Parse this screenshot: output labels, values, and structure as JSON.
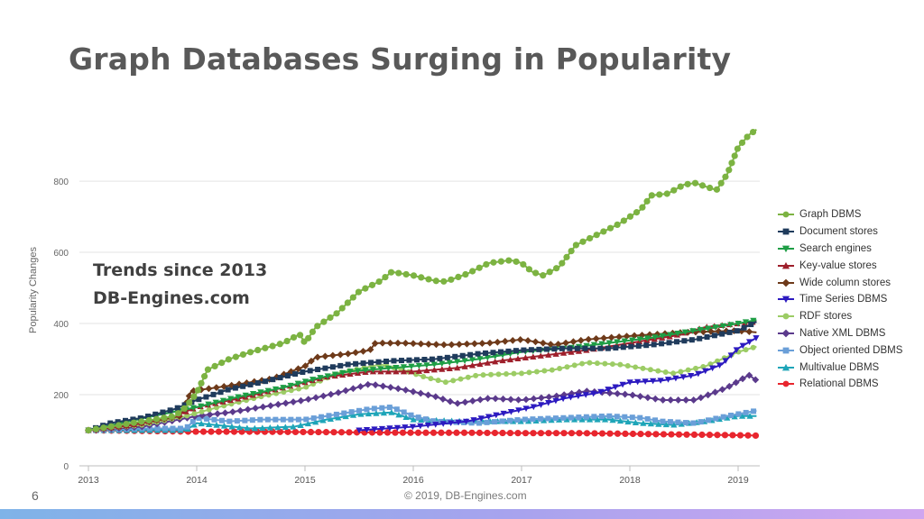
{
  "slide": {
    "title": "Graph Databases Surging in Popularity",
    "overlay_line1": "Trends since 2013",
    "overlay_line2": "DB-Engines.com",
    "slide_number": "6",
    "credit": "© 2019, DB-Engines.com"
  },
  "colors": {
    "accent_bar_start": "#7fb3e8",
    "accent_bar_end": "#cfa6f0"
  },
  "chart_data": {
    "type": "line",
    "title": "",
    "xlabel": "",
    "ylabel": "Popularity Changes",
    "xlim": [
      2013,
      2019.2
    ],
    "ylim": [
      0,
      980
    ],
    "x_ticks": [
      2013,
      2014,
      2015,
      2016,
      2017,
      2018,
      2019
    ],
    "y_ticks": [
      0,
      200,
      400,
      600,
      800
    ],
    "legend_position": "right",
    "series": [
      {
        "name": "Graph DBMS",
        "color": "#7cb342",
        "marker": "circle",
        "points": [
          [
            2013,
            100
          ],
          [
            2013.5,
            125
          ],
          [
            2013.8,
            140
          ],
          [
            2013.9,
            165
          ],
          [
            2014.0,
            205
          ],
          [
            2014.1,
            270
          ],
          [
            2014.3,
            300
          ],
          [
            2014.5,
            320
          ],
          [
            2014.8,
            345
          ],
          [
            2014.95,
            370
          ],
          [
            2015.0,
            345
          ],
          [
            2015.1,
            390
          ],
          [
            2015.3,
            430
          ],
          [
            2015.5,
            490
          ],
          [
            2015.7,
            520
          ],
          [
            2015.8,
            545
          ],
          [
            2016.0,
            535
          ],
          [
            2016.2,
            520
          ],
          [
            2016.3,
            518
          ],
          [
            2016.5,
            540
          ],
          [
            2016.7,
            570
          ],
          [
            2016.9,
            578
          ],
          [
            2017.0,
            570
          ],
          [
            2017.1,
            545
          ],
          [
            2017.2,
            535
          ],
          [
            2017.35,
            560
          ],
          [
            2017.5,
            620
          ],
          [
            2017.7,
            650
          ],
          [
            2017.9,
            680
          ],
          [
            2018.1,
            720
          ],
          [
            2018.2,
            760
          ],
          [
            2018.35,
            765
          ],
          [
            2018.5,
            790
          ],
          [
            2018.6,
            795
          ],
          [
            2018.7,
            785
          ],
          [
            2018.8,
            775
          ],
          [
            2018.9,
            820
          ],
          [
            2019.0,
            895
          ],
          [
            2019.1,
            930
          ],
          [
            2019.17,
            945
          ]
        ]
      },
      {
        "name": "Document stores",
        "color": "#1f3b5c",
        "marker": "square",
        "points": [
          [
            2013,
            100
          ],
          [
            2013.2,
            120
          ],
          [
            2013.5,
            135
          ],
          [
            2013.8,
            160
          ],
          [
            2014.0,
            185
          ],
          [
            2014.3,
            215
          ],
          [
            2014.6,
            235
          ],
          [
            2015.0,
            265
          ],
          [
            2015.4,
            285
          ],
          [
            2015.8,
            295
          ],
          [
            2016.2,
            300
          ],
          [
            2016.6,
            315
          ],
          [
            2017.0,
            325
          ],
          [
            2017.4,
            330
          ],
          [
            2017.8,
            330
          ],
          [
            2018.2,
            340
          ],
          [
            2018.6,
            355
          ],
          [
            2019.0,
            380
          ],
          [
            2019.17,
            405
          ]
        ]
      },
      {
        "name": "Search engines",
        "color": "#1e9e45",
        "marker": "triangle-down",
        "points": [
          [
            2013,
            100
          ],
          [
            2013.3,
            120
          ],
          [
            2013.6,
            140
          ],
          [
            2014.0,
            165
          ],
          [
            2014.4,
            195
          ],
          [
            2014.8,
            220
          ],
          [
            2015.1,
            245
          ],
          [
            2015.4,
            265
          ],
          [
            2015.8,
            275
          ],
          [
            2016.2,
            285
          ],
          [
            2016.6,
            300
          ],
          [
            2017.0,
            320
          ],
          [
            2017.4,
            330
          ],
          [
            2017.8,
            345
          ],
          [
            2018.2,
            360
          ],
          [
            2018.6,
            380
          ],
          [
            2019.0,
            400
          ],
          [
            2019.17,
            410
          ]
        ]
      },
      {
        "name": "Key-value stores",
        "color": "#9e1f2b",
        "marker": "triangle-up",
        "points": [
          [
            2013,
            100
          ],
          [
            2013.4,
            115
          ],
          [
            2013.8,
            140
          ],
          [
            2014.0,
            165
          ],
          [
            2014.4,
            190
          ],
          [
            2014.8,
            220
          ],
          [
            2015.2,
            250
          ],
          [
            2015.6,
            265
          ],
          [
            2016.0,
            265
          ],
          [
            2016.4,
            275
          ],
          [
            2016.8,
            295
          ],
          [
            2017.2,
            310
          ],
          [
            2017.6,
            325
          ],
          [
            2018.0,
            345
          ],
          [
            2018.4,
            365
          ],
          [
            2018.7,
            390
          ],
          [
            2019.0,
            400
          ],
          [
            2019.17,
            405
          ]
        ]
      },
      {
        "name": "Wide column stores",
        "color": "#6e3a1a",
        "marker": "diamond",
        "points": [
          [
            2013,
            100
          ],
          [
            2013.4,
            115
          ],
          [
            2013.85,
            140
          ],
          [
            2013.95,
            210
          ],
          [
            2014.3,
            225
          ],
          [
            2014.7,
            245
          ],
          [
            2015.0,
            280
          ],
          [
            2015.1,
            305
          ],
          [
            2015.4,
            315
          ],
          [
            2015.6,
            325
          ],
          [
            2015.65,
            345
          ],
          [
            2015.9,
            345
          ],
          [
            2016.3,
            340
          ],
          [
            2016.7,
            345
          ],
          [
            2017.0,
            355
          ],
          [
            2017.3,
            340
          ],
          [
            2017.6,
            355
          ],
          [
            2018.0,
            365
          ],
          [
            2018.5,
            375
          ],
          [
            2019.0,
            380
          ],
          [
            2019.17,
            375
          ]
        ]
      },
      {
        "name": "Time Series DBMS",
        "color": "#2c1ac0",
        "marker": "triangle-down",
        "points": [
          [
            2015.5,
            100
          ],
          [
            2016.0,
            110
          ],
          [
            2016.5,
            125
          ],
          [
            2016.8,
            145
          ],
          [
            2017.1,
            165
          ],
          [
            2017.4,
            190
          ],
          [
            2017.7,
            205
          ],
          [
            2018.0,
            235
          ],
          [
            2018.3,
            240
          ],
          [
            2018.6,
            255
          ],
          [
            2018.85,
            285
          ],
          [
            2019.0,
            330
          ],
          [
            2019.17,
            360
          ]
        ]
      },
      {
        "name": "RDF stores",
        "color": "#9ccc65",
        "marker": "circle",
        "points": [
          [
            2013,
            100
          ],
          [
            2013.5,
            115
          ],
          [
            2013.9,
            140
          ],
          [
            2014.2,
            165
          ],
          [
            2014.6,
            195
          ],
          [
            2015.0,
            220
          ],
          [
            2015.3,
            260
          ],
          [
            2015.7,
            285
          ],
          [
            2015.9,
            270
          ],
          [
            2016.1,
            250
          ],
          [
            2016.3,
            235
          ],
          [
            2016.6,
            255
          ],
          [
            2017.0,
            260
          ],
          [
            2017.3,
            270
          ],
          [
            2017.6,
            290
          ],
          [
            2017.9,
            285
          ],
          [
            2018.2,
            270
          ],
          [
            2018.4,
            260
          ],
          [
            2018.7,
            280
          ],
          [
            2019.0,
            320
          ],
          [
            2019.17,
            335
          ]
        ]
      },
      {
        "name": "Native XML DBMS",
        "color": "#5b3a8c",
        "marker": "diamond",
        "points": [
          [
            2013,
            100
          ],
          [
            2013.5,
            110
          ],
          [
            2014.0,
            140
          ],
          [
            2014.3,
            150
          ],
          [
            2014.6,
            165
          ],
          [
            2015.0,
            185
          ],
          [
            2015.3,
            205
          ],
          [
            2015.6,
            230
          ],
          [
            2015.9,
            215
          ],
          [
            2016.2,
            195
          ],
          [
            2016.4,
            175
          ],
          [
            2016.7,
            190
          ],
          [
            2017.0,
            185
          ],
          [
            2017.3,
            195
          ],
          [
            2017.6,
            210
          ],
          [
            2018.0,
            200
          ],
          [
            2018.3,
            185
          ],
          [
            2018.6,
            185
          ],
          [
            2018.9,
            220
          ],
          [
            2019.1,
            255
          ],
          [
            2019.17,
            240
          ]
        ]
      },
      {
        "name": "Object oriented DBMS",
        "color": "#6a9fd8",
        "marker": "square",
        "points": [
          [
            2013,
            100
          ],
          [
            2013.5,
            105
          ],
          [
            2013.9,
            105
          ],
          [
            2014.0,
            135
          ],
          [
            2014.3,
            125
          ],
          [
            2014.6,
            130
          ],
          [
            2015.0,
            130
          ],
          [
            2015.3,
            145
          ],
          [
            2015.6,
            160
          ],
          [
            2015.8,
            165
          ],
          [
            2016.0,
            140
          ],
          [
            2016.2,
            125
          ],
          [
            2016.6,
            120
          ],
          [
            2017.0,
            130
          ],
          [
            2017.4,
            135
          ],
          [
            2017.8,
            140
          ],
          [
            2018.1,
            135
          ],
          [
            2018.3,
            125
          ],
          [
            2018.6,
            120
          ],
          [
            2018.9,
            140
          ],
          [
            2019.17,
            155
          ]
        ]
      },
      {
        "name": "Multivalue DBMS",
        "color": "#1ea5b8",
        "marker": "triangle-up",
        "points": [
          [
            2013,
            100
          ],
          [
            2013.5,
            100
          ],
          [
            2013.9,
            100
          ],
          [
            2014.0,
            120
          ],
          [
            2014.5,
            105
          ],
          [
            2014.9,
            110
          ],
          [
            2015.2,
            130
          ],
          [
            2015.5,
            145
          ],
          [
            2015.8,
            150
          ],
          [
            2016.0,
            130
          ],
          [
            2016.5,
            125
          ],
          [
            2017.0,
            125
          ],
          [
            2017.4,
            130
          ],
          [
            2017.8,
            130
          ],
          [
            2018.1,
            120
          ],
          [
            2018.4,
            115
          ],
          [
            2018.7,
            125
          ],
          [
            2019.0,
            140
          ],
          [
            2019.17,
            140
          ]
        ]
      },
      {
        "name": "Relational DBMS",
        "color": "#e8262e",
        "marker": "circle",
        "points": [
          [
            2013,
            100
          ],
          [
            2013.5,
            98
          ],
          [
            2014.0,
            96
          ],
          [
            2014.5,
            96
          ],
          [
            2015.0,
            95
          ],
          [
            2015.5,
            94
          ],
          [
            2016.0,
            93
          ],
          [
            2016.5,
            93
          ],
          [
            2017.0,
            92
          ],
          [
            2017.5,
            92
          ],
          [
            2018.0,
            90
          ],
          [
            2018.5,
            88
          ],
          [
            2019.0,
            86
          ],
          [
            2019.17,
            85
          ]
        ]
      }
    ]
  }
}
